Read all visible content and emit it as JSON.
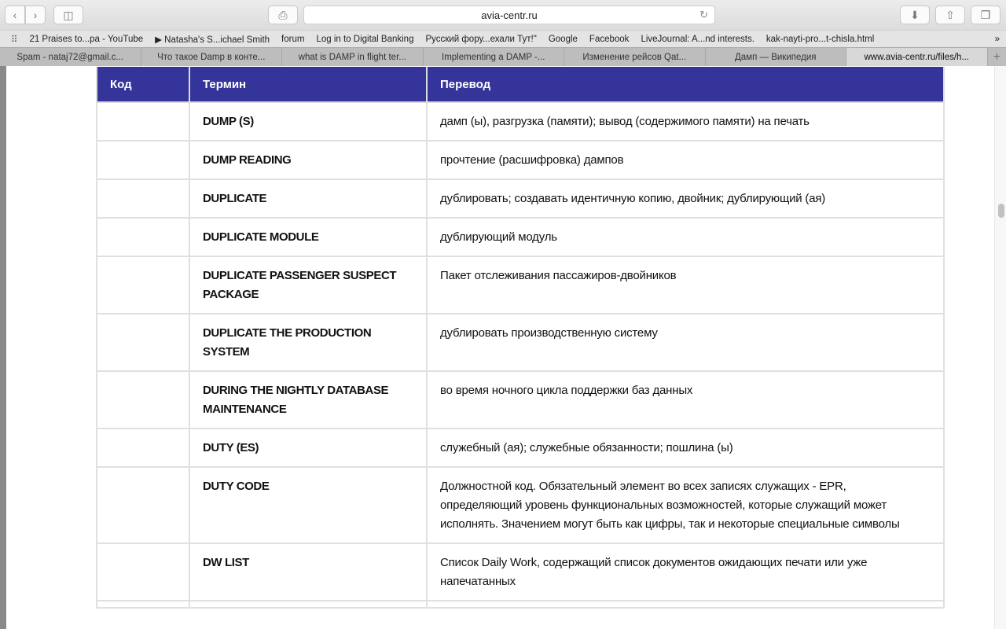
{
  "browser": {
    "url": "avia-centr.ru",
    "bookmarks": [
      "21 Praises to...pa - YouTube",
      "▶ Natasha's S...ichael Smith",
      "forum",
      "Log in to Digital Banking",
      "Русский фору...ехали Тут!\"",
      "Google",
      "Facebook",
      "LiveJournal: A...nd interests.",
      "kak-nayti-pro...t-chisla.html"
    ],
    "tabs": [
      "Spam - nataj72@gmail.c...",
      "Что такое Damp в конте...",
      "what is DAMP in flight ter...",
      "Implementing a DAMP -...",
      "Изменение рейсов Qat...",
      "Дамп — Википедия",
      "www.avia-centr.ru/files/h..."
    ],
    "active_tab": 6
  },
  "table": {
    "headers": [
      "Код",
      "Термин",
      "Перевод"
    ],
    "rows": [
      {
        "code": "",
        "term": "DUMP (S)",
        "translation": "дамп (ы), разгрузка (памяти); вывод (содержимого памяти) на печать"
      },
      {
        "code": "",
        "term": "DUMP READING",
        "translation": "прочтение (расшифровка) дампов"
      },
      {
        "code": "",
        "term": "DUPLICATE",
        "translation": "дублировать; создавать идентичную копию, двойник; дублирующий (ая)"
      },
      {
        "code": "",
        "term": "DUPLICATE MODULE",
        "translation": "дублирующий модуль"
      },
      {
        "code": "",
        "term": "DUPLICATE PASSENGER SUSPECT PACKAGE",
        "translation": "Пакет отслеживания пассажиров-двойников"
      },
      {
        "code": "",
        "term": "DUPLICATE THE PRODUCTION SYSTEM",
        "translation": "дублировать производственную систему"
      },
      {
        "code": "",
        "term": "DURING THE NIGHTLY DATABASE MAINTENANCE",
        "translation": "во время ночного цикла поддержки баз данных"
      },
      {
        "code": "",
        "term": "DUTY (ES)",
        "translation": "служебный (ая); служебные обязанности; пошлина (ы)"
      },
      {
        "code": "",
        "term": "DUTY CODE",
        "translation": "Должностной код. Обязательный элемент во всех записях служащих - EPR, определяющий уровень функциональных возможностей, которые служащий может исполнять. Значением могут быть как цифры, так и некоторые специальные символы"
      },
      {
        "code": "",
        "term": "DW LIST",
        "translation": "Список Daily Work, содержащий список документов ожидающих печати или уже напечатанных"
      },
      {
        "code": "",
        "term": "",
        "translation": ""
      }
    ]
  },
  "colors": {
    "header_bg": "#35349a",
    "border": "#e0e0e0"
  }
}
